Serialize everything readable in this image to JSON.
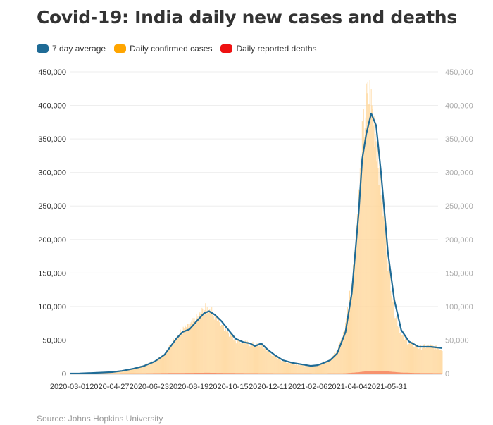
{
  "title": "Covid-19: India daily new cases and deaths",
  "legend": [
    {
      "label": "7 day average",
      "color": "#1f6b96"
    },
    {
      "label": "Daily confirmed cases",
      "color": "#ffa500"
    },
    {
      "label": "Daily reported deaths",
      "color": "#ee1111"
    }
  ],
  "source": "Source: Johns Hopkins University",
  "chart_data": {
    "type": "bar",
    "title": "Covid-19: India daily new cases and deaths",
    "xlabel": "",
    "ylabel": "",
    "ylim": [
      0,
      450000
    ],
    "y_ticks": [
      0,
      50000,
      100000,
      150000,
      200000,
      250000,
      300000,
      350000,
      400000,
      450000
    ],
    "y_tick_labels": [
      "0",
      "50,000",
      "100,000",
      "150,000",
      "200,000",
      "250,000",
      "300,000",
      "350,000",
      "400,000",
      "450,000"
    ],
    "x_range": [
      "2020-03-01",
      "2021-08-18"
    ],
    "x_tick_labels": [
      "2020-03-01",
      "2020-04-27",
      "2020-06-23",
      "2020-08-19",
      "2020-10-15",
      "2020-12-11",
      "2021-02-06",
      "2021-04-04",
      "2021-05-31"
    ],
    "grid": true,
    "legend_position": "top-left",
    "dual_axis": "right axis mirrors left axis",
    "series": [
      {
        "name": "7 day average",
        "type": "line",
        "color": "#1f6b96",
        "x": [
          "2020-03-01",
          "2020-03-15",
          "2020-04-01",
          "2020-04-15",
          "2020-05-01",
          "2020-05-15",
          "2020-06-01",
          "2020-06-15",
          "2020-07-01",
          "2020-07-15",
          "2020-08-01",
          "2020-08-10",
          "2020-08-20",
          "2020-09-01",
          "2020-09-10",
          "2020-09-17",
          "2020-09-25",
          "2020-10-05",
          "2020-10-15",
          "2020-10-25",
          "2020-11-05",
          "2020-11-15",
          "2020-11-22",
          "2020-12-01",
          "2020-12-10",
          "2020-12-20",
          "2021-01-01",
          "2021-01-15",
          "2021-02-01",
          "2021-02-10",
          "2021-02-20",
          "2021-03-01",
          "2021-03-10",
          "2021-03-20",
          "2021-04-01",
          "2021-04-10",
          "2021-04-20",
          "2021-04-25",
          "2021-05-01",
          "2021-05-08",
          "2021-05-15",
          "2021-05-22",
          "2021-06-01",
          "2021-06-10",
          "2021-06-20",
          "2021-07-01",
          "2021-07-15",
          "2021-08-01",
          "2021-08-18"
        ],
        "values": [
          50,
          100,
          800,
          1500,
          2200,
          4000,
          7500,
          11000,
          18000,
          28000,
          52000,
          62000,
          66000,
          80000,
          90000,
          93000,
          88000,
          78000,
          65000,
          52000,
          47000,
          45000,
          41000,
          45000,
          36000,
          28000,
          20000,
          16000,
          13000,
          11500,
          12500,
          16000,
          20000,
          30000,
          62000,
          120000,
          240000,
          320000,
          358000,
          388000,
          370000,
          300000,
          180000,
          110000,
          65000,
          48000,
          40000,
          40000,
          38000
        ]
      },
      {
        "name": "Daily confirmed cases",
        "type": "bar",
        "color": "#ffa500",
        "x": [
          "2020-03-01",
          "2020-03-15",
          "2020-04-01",
          "2020-04-15",
          "2020-05-01",
          "2020-05-15",
          "2020-06-01",
          "2020-06-15",
          "2020-07-01",
          "2020-07-15",
          "2020-08-01",
          "2020-08-10",
          "2020-08-20",
          "2020-09-01",
          "2020-09-10",
          "2020-09-17",
          "2020-09-25",
          "2020-10-05",
          "2020-10-15",
          "2020-10-25",
          "2020-11-05",
          "2020-11-15",
          "2020-11-22",
          "2020-12-01",
          "2020-12-10",
          "2020-12-20",
          "2021-01-01",
          "2021-01-15",
          "2021-02-01",
          "2021-02-10",
          "2021-02-20",
          "2021-03-01",
          "2021-03-10",
          "2021-03-20",
          "2021-04-01",
          "2021-04-10",
          "2021-04-20",
          "2021-04-25",
          "2021-05-01",
          "2021-05-06",
          "2021-05-08",
          "2021-05-15",
          "2021-05-22",
          "2021-06-01",
          "2021-06-10",
          "2021-06-20",
          "2021-07-01",
          "2021-07-15",
          "2021-08-01",
          "2021-08-18"
        ],
        "values": [
          60,
          120,
          900,
          1600,
          2400,
          4200,
          8000,
          12000,
          19000,
          29000,
          54000,
          64000,
          70000,
          83000,
          95000,
          97000,
          86000,
          75000,
          62000,
          50000,
          46000,
          44000,
          43000,
          42000,
          34000,
          26000,
          19000,
          15000,
          12000,
          11000,
          13000,
          17000,
          22000,
          33000,
          72000,
          140000,
          260000,
          345000,
          400000,
          414000,
          401000,
          355000,
          280000,
          170000,
          95000,
          58000,
          46000,
          39000,
          41000,
          36000
        ]
      },
      {
        "name": "Daily reported deaths",
        "type": "area",
        "color": "#ee1111",
        "x": [
          "2020-03-01",
          "2020-06-01",
          "2020-08-01",
          "2020-09-15",
          "2020-11-01",
          "2021-01-01",
          "2021-03-01",
          "2021-04-01",
          "2021-04-20",
          "2021-05-01",
          "2021-05-15",
          "2021-06-01",
          "2021-06-20",
          "2021-07-15",
          "2021-08-18"
        ],
        "values": [
          0,
          200,
          800,
          1150,
          600,
          300,
          100,
          400,
          2000,
          3500,
          4000,
          3200,
          1500,
          700,
          500
        ]
      }
    ]
  }
}
